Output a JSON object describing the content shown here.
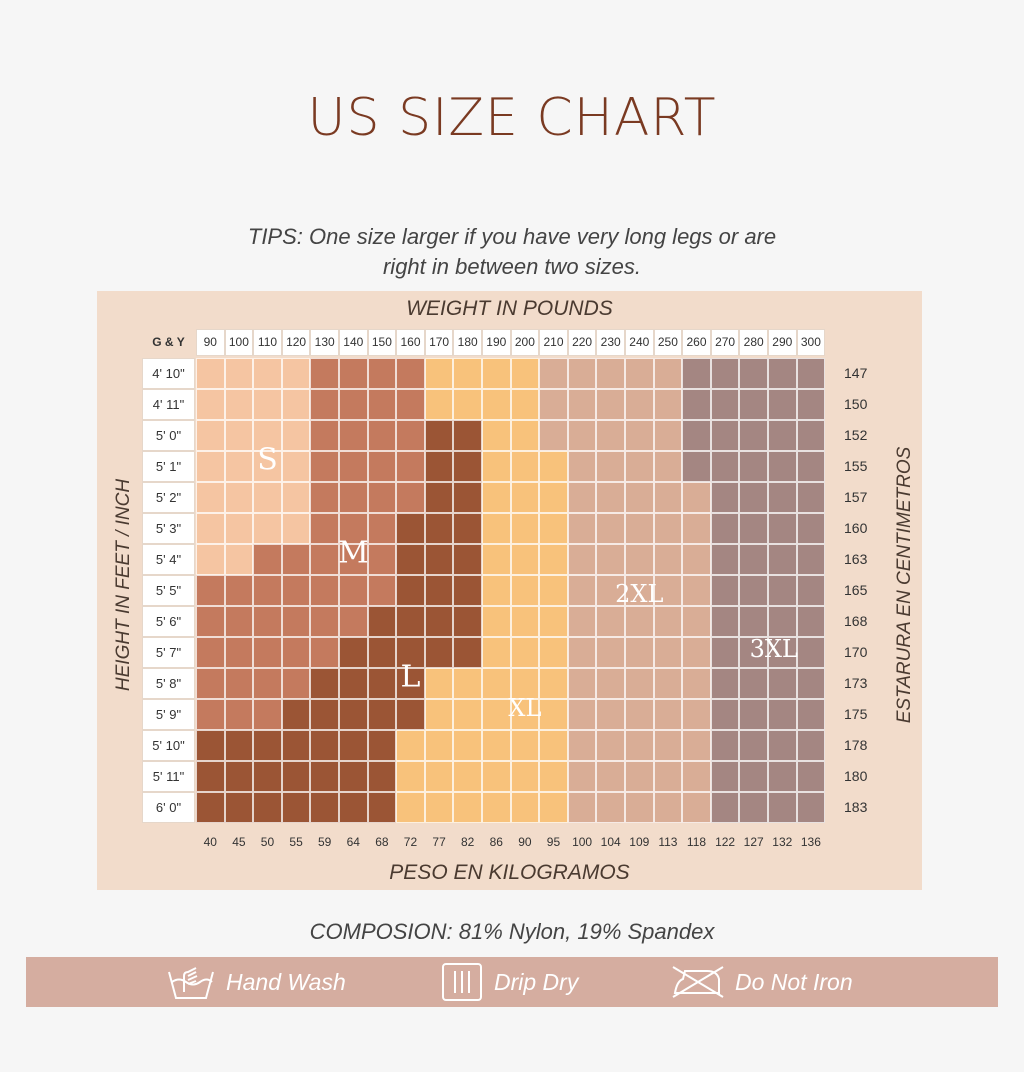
{
  "title": "US SIZE CHART",
  "tips_line1": "TIPS: One size larger if you have very long legs or are",
  "tips_line2": "right in between two sizes.",
  "weight_axis_label": "WEIGHT IN POUNDS",
  "kg_axis_label": "PESO EN KILOGRAMOS",
  "height_axis_label": "HEIGHT IN FEET / INCH",
  "cm_axis_label": "ESTARURA EN CENTIMETROS",
  "corner_label": "G & Y",
  "colors": {
    "S": "#f5c5a2",
    "M": "#c47a5e",
    "L": "#9b5535",
    "XL": "#f8c27b",
    "2XL": "#d9ad96",
    "3XL": "#a48682",
    "grid_line": "#ffffff",
    "panel": "#f2dccb",
    "care_band": "#d5ada0",
    "title": "#7a3a22"
  },
  "chart_data": {
    "type": "heatmap",
    "title": "US SIZE CHART",
    "xlabel": "WEIGHT IN POUNDS",
    "ylabel": "HEIGHT IN FEET / INCH",
    "x_pounds": [
      90,
      100,
      110,
      120,
      130,
      140,
      150,
      160,
      170,
      180,
      190,
      200,
      210,
      220,
      230,
      240,
      250,
      260,
      270,
      280,
      290,
      300
    ],
    "x_kilograms": [
      40,
      45,
      50,
      55,
      59,
      64,
      68,
      72,
      77,
      82,
      86,
      90,
      95,
      100,
      104,
      109,
      113,
      118,
      122,
      127,
      132,
      136
    ],
    "y_feet_inch": [
      "4' 10\"",
      "4' 11\"",
      "5' 0\"",
      "5' 1\"",
      "5' 2\"",
      "5' 3\"",
      "5' 4\"",
      "5' 5\"",
      "5' 6\"",
      "5' 7\"",
      "5' 8\"",
      "5' 9\"",
      "5' 10\"",
      "5' 11\"",
      "6' 0\""
    ],
    "y_centimeters": [
      147,
      150,
      152,
      155,
      157,
      160,
      163,
      165,
      168,
      170,
      173,
      175,
      178,
      180,
      183
    ],
    "sizes": [
      "S",
      "M",
      "L",
      "XL",
      "2XL",
      "3XL"
    ],
    "grid": [
      "SSSSMMMMXXXXWWWWWZZZZZ",
      "SSSSMMMMXXXXWWWWWZZZZZ",
      "SSSSMMMMLLXXWWWWWZZZZZ",
      "SSSSMMMMLLXXXWWWWZZZZZ",
      "SSSSMMMMLLXXXWWWWWZZZZ",
      "SSSSMMMLLLXXXWWWWWZZZZ",
      "SSMMMMMLLLXXXWWWWWZZZZ",
      "MMMMMMMLLLXXXWWWWWZZZZ",
      "MMMMMMLLLLXXXWWWWWZZZZ",
      "MMMMMLLLLLXXXWWWWWZZZZ",
      "MMMMLLLLXXXXXWWWWWZZZZ",
      "MMMLLLLLXXXXXWWWWWZZZZ",
      "LLLLLLLXXXXXXWWWWWZZZZ",
      "LLLLLLLXXXXXXWWWWWZZZZ",
      "LLLLLLLXXXXXXWWWWWZZZZ"
    ],
    "grid_legend": {
      "S": "S",
      "M": "M",
      "L": "L",
      "X": "XL",
      "W": "2XL",
      "Z": "3XL"
    },
    "region_labels": [
      {
        "text": "S",
        "col": 2,
        "row": 2.8
      },
      {
        "text": "M",
        "col": 5,
        "row": 5.8
      },
      {
        "text": "L",
        "col": 7,
        "row": 9.8
      },
      {
        "text": "XL",
        "col": 11,
        "row": 10.8
      },
      {
        "text": "2XL",
        "col": 15,
        "row": 7.1
      },
      {
        "text": "3XL",
        "col": 19.7,
        "row": 8.9
      }
    ]
  },
  "composition": "COMPOSION: 81% Nylon, 19% Spandex",
  "care": [
    {
      "icon": "hand-wash-icon",
      "label": "Hand Wash"
    },
    {
      "icon": "drip-dry-icon",
      "label": "Drip Dry"
    },
    {
      "icon": "do-not-iron-icon",
      "label": "Do Not Iron"
    }
  ]
}
